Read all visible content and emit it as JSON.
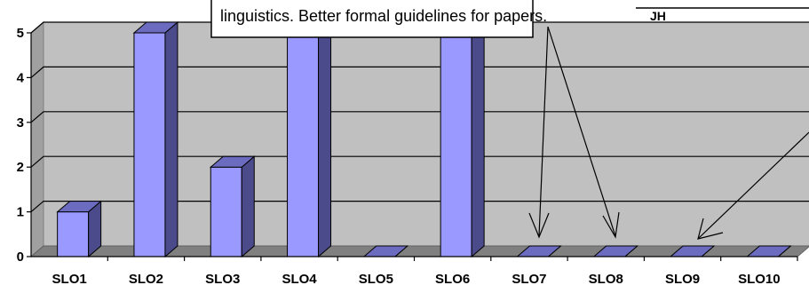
{
  "chart_data": {
    "type": "bar",
    "categories": [
      "SLO1",
      "SLO2",
      "SLO3",
      "SLO4",
      "SLO5",
      "SLO6",
      "SLO7",
      "SLO8",
      "SLO9",
      "SLO10"
    ],
    "series": [
      {
        "values": [
          1,
          5,
          2,
          5,
          0,
          5,
          0,
          0,
          0,
          0
        ]
      }
    ],
    "yticks": [
      "0",
      "1",
      "2",
      "3",
      "4",
      "5"
    ],
    "ylim": [
      0,
      5
    ],
    "grid": true,
    "style": "3d-column",
    "colors": {
      "bar_front": "#9999ff",
      "bar_side": "#4b4b8c",
      "bar_top": "#6b6bbf",
      "plot_back": "#c0c0c0",
      "plot_floor": "#808080",
      "gridline": "#000000"
    }
  },
  "annotation": {
    "text": "linguistics. Better formal guidelines for papers."
  },
  "legend_fragment": {
    "text": "JH"
  }
}
